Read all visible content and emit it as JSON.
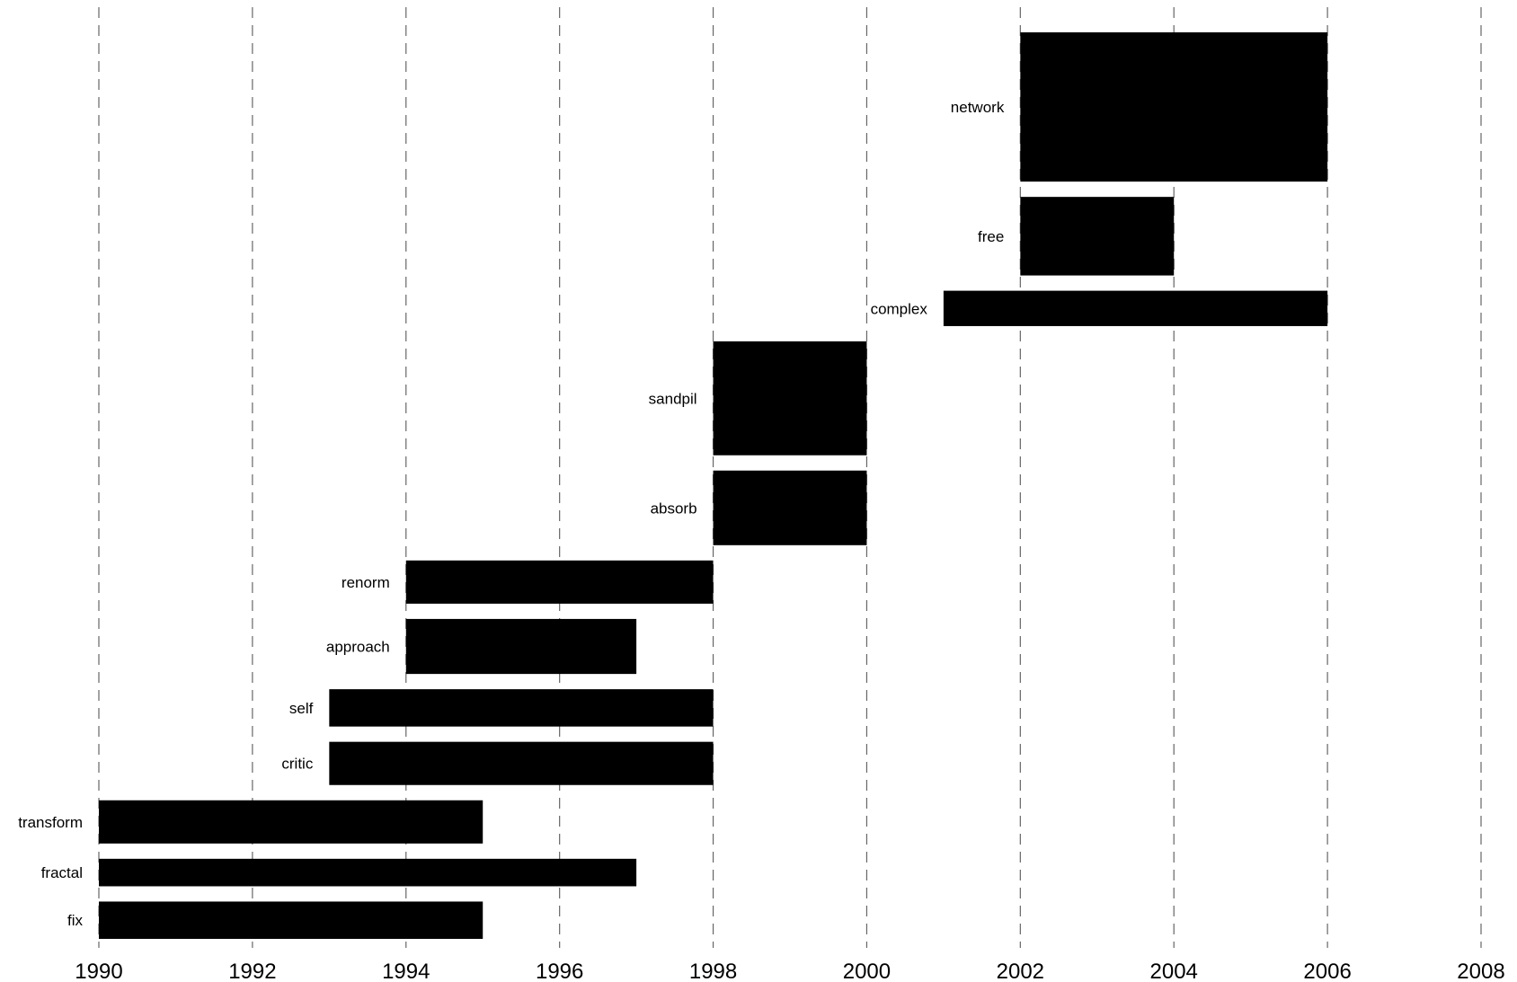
{
  "chart_data": {
    "type": "bar",
    "orientation": "horizontal-timeline",
    "xlim": [
      1990,
      2008
    ],
    "xticks": [
      "1990",
      "1992",
      "1994",
      "1996",
      "1998",
      "2000",
      "2002",
      "2004",
      "2006",
      "2008"
    ],
    "grid": true,
    "bar_color": "#000000",
    "series": [
      {
        "label": "fix",
        "start": 1990,
        "end": 1995,
        "weight": 0.95
      },
      {
        "label": "fractal",
        "start": 1990,
        "end": 1997,
        "weight": 0.7
      },
      {
        "label": "transform",
        "start": 1990,
        "end": 1995,
        "weight": 1.1
      },
      {
        "label": "critic",
        "start": 1993,
        "end": 1998,
        "weight": 1.1
      },
      {
        "label": "self",
        "start": 1993,
        "end": 1998,
        "weight": 0.95
      },
      {
        "label": "approach",
        "start": 1994,
        "end": 1997,
        "weight": 1.4
      },
      {
        "label": "renorm",
        "start": 1994,
        "end": 1998,
        "weight": 1.1
      },
      {
        "label": "absorb",
        "start": 1998,
        "end": 2000,
        "weight": 1.9
      },
      {
        "label": "sandpil",
        "start": 1998,
        "end": 2000,
        "weight": 2.9
      },
      {
        "label": "complex",
        "start": 2001,
        "end": 2006,
        "weight": 0.9
      },
      {
        "label": "free",
        "start": 2002,
        "end": 2004,
        "weight": 2.0
      },
      {
        "label": "network",
        "start": 2002,
        "end": 2006,
        "weight": 3.8
      }
    ]
  }
}
